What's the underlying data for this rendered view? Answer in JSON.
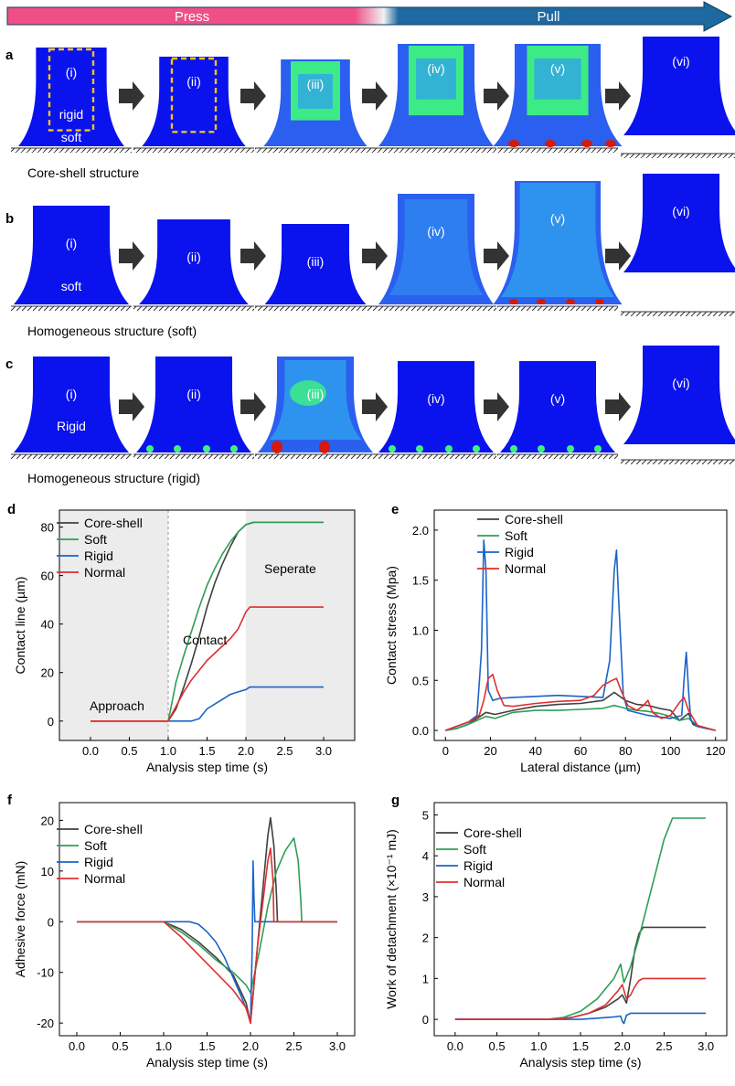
{
  "colors": {
    "deep": "#0a12ee",
    "mid": "#2a5ff0",
    "light": "#2fa0ee",
    "green": "#3ef27f",
    "red": "#d41a0a",
    "press": "#ef4f86",
    "pull": "#1e6aa0",
    "core": "#404040",
    "soft": "#2e9e55",
    "rigid": "#1a64c8",
    "normal": "#df2f2f"
  },
  "banner": {
    "press": "Press",
    "pull": "Pull"
  },
  "rows": [
    {
      "panel": "a",
      "caption": "Core-shell structure",
      "stages": [
        "(i)",
        "(ii)",
        "(iii)",
        "(iv)",
        "(v)",
        "(vi)"
      ],
      "first_inner_label": "rigid",
      "first_outer_label": "soft"
    },
    {
      "panel": "b",
      "caption": "Homogeneous structure (soft)",
      "stages": [
        "(i)",
        "(ii)",
        "(iii)",
        "(iv)",
        "(v)",
        "(vi)"
      ],
      "first_label": "soft"
    },
    {
      "panel": "c",
      "caption": "Homogeneous structure (rigid)",
      "stages": [
        "(i)",
        "(ii)",
        "(iii)",
        "(iv)",
        "(v)",
        "(vi)"
      ],
      "first_label": "Rigid"
    }
  ],
  "chart_data": [
    {
      "panel": "d",
      "type": "line",
      "xlabel": "Analysis step time (s)",
      "ylabel": "Contact line (µm)",
      "xlim": [
        -0.4,
        3.4
      ],
      "ylim": [
        -8,
        87
      ],
      "xticks": [
        "0.0",
        "0.5",
        "1.0",
        "1.5",
        "2.0",
        "2.5",
        "3.0"
      ],
      "yticks": [
        "0",
        "20",
        "40",
        "60",
        "80"
      ],
      "shaded": [
        [
          -0.4,
          1.0
        ],
        [
          2.0,
          3.4
        ]
      ],
      "annotations": {
        "approach": "Approach",
        "contact": "Contact",
        "separate": "Seperate"
      },
      "series": [
        {
          "name": "Core-shell",
          "color": "#404040",
          "x": [
            0,
            1.0,
            1.1,
            1.2,
            1.3,
            1.4,
            1.5,
            1.6,
            1.7,
            1.8,
            1.9,
            2.0,
            2.1,
            3.0
          ],
          "y": [
            0,
            0,
            5,
            14,
            24,
            35,
            47,
            57,
            65,
            72,
            78,
            81,
            82,
            82
          ]
        },
        {
          "name": "Soft",
          "color": "#2e9e55",
          "x": [
            0,
            1.0,
            1.05,
            1.1,
            1.2,
            1.3,
            1.4,
            1.5,
            1.6,
            1.7,
            1.8,
            1.9,
            2.0,
            2.1,
            3.0
          ],
          "y": [
            0,
            0,
            8,
            16,
            27,
            37,
            47,
            56,
            63,
            69,
            74,
            78,
            81,
            82,
            82
          ]
        },
        {
          "name": "Rigid",
          "color": "#1a64c8",
          "x": [
            0,
            1.0,
            1.1,
            1.2,
            1.3,
            1.4,
            1.45,
            1.5,
            1.6,
            1.7,
            1.8,
            1.9,
            2.0,
            2.05,
            3.0
          ],
          "y": [
            0,
            0,
            0,
            0,
            0,
            1,
            3,
            5,
            7,
            9,
            11,
            12,
            13,
            14,
            14
          ]
        },
        {
          "name": "Normal",
          "color": "#df2f2f",
          "x": [
            0,
            1.0,
            1.1,
            1.2,
            1.3,
            1.4,
            1.5,
            1.6,
            1.7,
            1.8,
            1.9,
            2.0,
            2.05,
            3.0
          ],
          "y": [
            0,
            0,
            6,
            12,
            17,
            21,
            25,
            28,
            31,
            34,
            38,
            45,
            47,
            47
          ]
        }
      ]
    },
    {
      "panel": "e",
      "type": "line",
      "xlabel": "Lateral distance (µm)",
      "ylabel": "Contact stress (Mpa)",
      "xlim": [
        -5,
        125
      ],
      "ylim": [
        -0.1,
        2.2
      ],
      "xticks": [
        "0",
        "20",
        "40",
        "60",
        "80",
        "100",
        "120"
      ],
      "yticks": [
        "0.0",
        "0.5",
        "1.0",
        "1.5",
        "2.0"
      ],
      "series": [
        {
          "name": "Core-shell",
          "color": "#404040",
          "x": [
            0,
            5,
            10,
            14,
            18,
            22,
            30,
            40,
            50,
            60,
            70,
            75,
            80,
            85,
            90,
            95,
            100,
            104,
            108,
            110,
            112,
            116,
            120
          ],
          "y": [
            0,
            0.02,
            0.06,
            0.12,
            0.18,
            0.16,
            0.2,
            0.24,
            0.26,
            0.27,
            0.3,
            0.38,
            0.3,
            0.26,
            0.25,
            0.22,
            0.2,
            0.1,
            0.17,
            0.06,
            0.04,
            0.02,
            0
          ]
        },
        {
          "name": "Soft",
          "color": "#2e9e55",
          "x": [
            0,
            5,
            10,
            14,
            18,
            22,
            30,
            40,
            50,
            60,
            70,
            75,
            80,
            85,
            90,
            95,
            100,
            104,
            108,
            112,
            116,
            120
          ],
          "y": [
            0,
            0.02,
            0.06,
            0.1,
            0.14,
            0.12,
            0.18,
            0.2,
            0.2,
            0.21,
            0.22,
            0.25,
            0.22,
            0.2,
            0.19,
            0.17,
            0.14,
            0.1,
            0.12,
            0.05,
            0.02,
            0
          ]
        },
        {
          "name": "Rigid",
          "color": "#1a64c8",
          "x": [
            0,
            10,
            14,
            16,
            17,
            18,
            19,
            21,
            24,
            30,
            40,
            50,
            60,
            70,
            73,
            75,
            76,
            77,
            79,
            81,
            90,
            100,
            105,
            106,
            107,
            108,
            109,
            112,
            120
          ],
          "y": [
            0,
            0.08,
            0.15,
            0.8,
            1.9,
            1.6,
            0.4,
            0.3,
            0.32,
            0.33,
            0.34,
            0.35,
            0.34,
            0.33,
            0.7,
            1.6,
            1.8,
            1.3,
            0.35,
            0.2,
            0.15,
            0.12,
            0.15,
            0.5,
            0.78,
            0.4,
            0.1,
            0.04,
            0
          ]
        },
        {
          "name": "Normal",
          "color": "#df2f2f",
          "x": [
            0,
            12,
            15,
            17,
            19,
            21,
            23,
            26,
            30,
            40,
            50,
            60,
            66,
            70,
            74,
            76,
            78,
            81,
            85,
            88,
            90,
            92,
            96,
            100,
            104,
            106,
            108,
            112,
            120
          ],
          "y": [
            0,
            0.1,
            0.15,
            0.3,
            0.52,
            0.56,
            0.4,
            0.25,
            0.24,
            0.27,
            0.29,
            0.3,
            0.35,
            0.45,
            0.5,
            0.52,
            0.4,
            0.25,
            0.2,
            0.25,
            0.3,
            0.18,
            0.12,
            0.15,
            0.28,
            0.33,
            0.2,
            0.05,
            0
          ]
        }
      ]
    },
    {
      "panel": "f",
      "type": "line",
      "xlabel": "Analysis step time (s)",
      "ylabel": "Adhesive force (mN)",
      "xlim": [
        -0.2,
        3.2
      ],
      "ylim": [
        -22.5,
        23.5
      ],
      "xticks": [
        "0.0",
        "0.5",
        "1.0",
        "1.5",
        "2.0",
        "2.5",
        "3.0"
      ],
      "yticks": [
        "-20",
        "-10",
        "0",
        "10",
        "20"
      ],
      "series": [
        {
          "name": "Core-shell",
          "color": "#404040",
          "x": [
            0,
            1.0,
            1.2,
            1.4,
            1.6,
            1.8,
            1.95,
            2.0,
            2.08,
            2.15,
            2.2,
            2.23,
            2.27,
            2.3,
            2.31,
            3.0
          ],
          "y": [
            0,
            0,
            -1.5,
            -4,
            -7,
            -10.5,
            -16,
            -20,
            -5,
            8,
            17,
            20.5,
            15,
            5,
            0,
            0
          ]
        },
        {
          "name": "Soft",
          "color": "#2e9e55",
          "x": [
            0,
            1.0,
            1.2,
            1.4,
            1.6,
            1.8,
            1.95,
            2.0,
            2.1,
            2.2,
            2.3,
            2.4,
            2.5,
            2.55,
            2.58,
            2.59,
            3.0
          ],
          "y": [
            0,
            0,
            -2,
            -4.5,
            -7.5,
            -10,
            -12.5,
            -14,
            -6,
            3,
            10,
            14,
            16.5,
            12,
            4,
            0,
            0
          ]
        },
        {
          "name": "Rigid",
          "color": "#1a64c8",
          "x": [
            0,
            1.0,
            1.3,
            1.4,
            1.5,
            1.6,
            1.7,
            1.8,
            1.9,
            1.97,
            2.0,
            2.02,
            2.03,
            2.04,
            2.05,
            2.1,
            3.0
          ],
          "y": [
            0,
            0,
            0,
            -0.5,
            -2,
            -4,
            -7,
            -11,
            -15,
            -18,
            -20,
            -5,
            12,
            5,
            0,
            0,
            0
          ]
        },
        {
          "name": "Normal",
          "color": "#df2f2f",
          "x": [
            0,
            1.0,
            1.2,
            1.4,
            1.6,
            1.8,
            1.95,
            2.0,
            2.08,
            2.15,
            2.2,
            2.23,
            2.26,
            2.27,
            3.0
          ],
          "y": [
            0,
            0,
            -3,
            -6.5,
            -10,
            -13.5,
            -17,
            -20,
            -5,
            5,
            12,
            14.5,
            8,
            0,
            0
          ]
        }
      ]
    },
    {
      "panel": "g",
      "type": "line",
      "xlabel": "Analysis step time (s)",
      "ylabel": "Work of detachment (×10⁻¹ mJ)",
      "xlim": [
        -0.25,
        3.25
      ],
      "ylim": [
        -0.4,
        5.3
      ],
      "xticks": [
        "0.0",
        "0.5",
        "1.0",
        "1.5",
        "2.0",
        "2.5",
        "3.0"
      ],
      "yticks": [
        "0",
        "1",
        "2",
        "3",
        "4",
        "5"
      ],
      "series": [
        {
          "name": "Core-shell",
          "color": "#404040",
          "x": [
            0,
            1.2,
            1.4,
            1.6,
            1.8,
            1.95,
            2.0,
            2.05,
            2.1,
            2.15,
            2.2,
            2.25,
            2.3,
            3.0
          ],
          "y": [
            0,
            0,
            0.05,
            0.15,
            0.3,
            0.5,
            0.6,
            0.4,
            1.0,
            1.7,
            2.1,
            2.25,
            2.25,
            2.25
          ]
        },
        {
          "name": "Soft",
          "color": "#2e9e55",
          "x": [
            0,
            1.1,
            1.3,
            1.5,
            1.7,
            1.9,
            1.98,
            2.02,
            2.1,
            2.2,
            2.3,
            2.4,
            2.5,
            2.6,
            3.0
          ],
          "y": [
            0,
            0,
            0.05,
            0.2,
            0.5,
            1.0,
            1.35,
            0.9,
            1.3,
            2.0,
            2.8,
            3.6,
            4.4,
            4.92,
            4.92
          ]
        },
        {
          "name": "Rigid",
          "color": "#1a64c8",
          "x": [
            0,
            1.5,
            1.7,
            1.9,
            1.98,
            2.0,
            2.02,
            2.05,
            2.1,
            3.0
          ],
          "y": [
            0,
            0,
            0.03,
            0.06,
            0.08,
            -0.05,
            -0.1,
            0.1,
            0.15,
            0.15
          ]
        },
        {
          "name": "Normal",
          "color": "#df2f2f",
          "x": [
            0,
            1.2,
            1.4,
            1.6,
            1.8,
            1.95,
            2.0,
            2.05,
            2.1,
            2.15,
            2.2,
            2.25,
            2.3,
            3.0
          ],
          "y": [
            0,
            0,
            0.05,
            0.15,
            0.35,
            0.7,
            0.85,
            0.5,
            0.6,
            0.8,
            0.95,
            1.0,
            1.0,
            1.0
          ]
        }
      ]
    }
  ]
}
